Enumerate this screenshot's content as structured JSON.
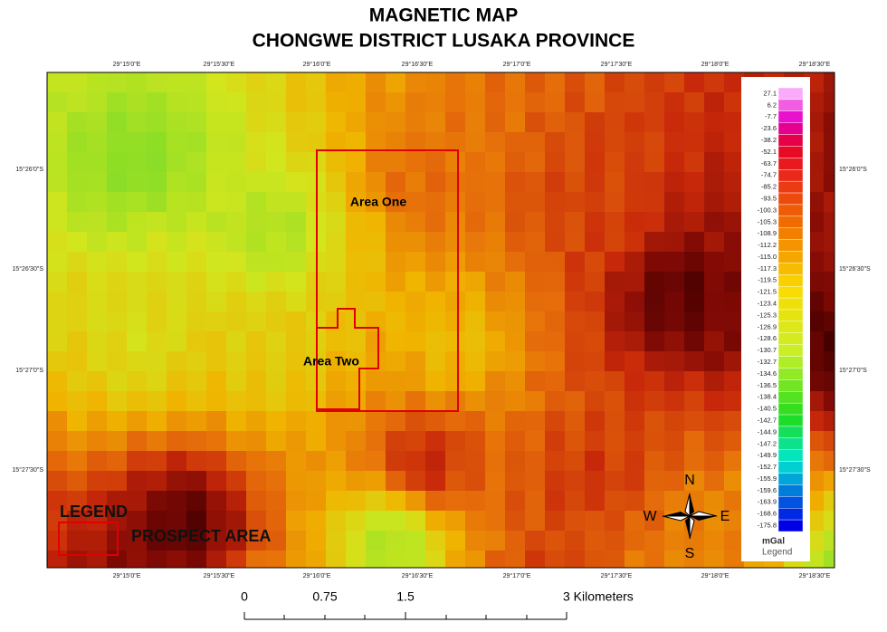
{
  "title": [
    "MAGNETIC MAP",
    "CHONGWE DISTRICT LUSAKA PROVINCE"
  ],
  "longitude_labels": [
    "29°15'0\"E",
    "29°15'30\"E",
    "29°16'0\"E",
    "29°16'30\"E",
    "29°17'0\"E",
    "29°17'30\"E",
    "29°18'0\"E",
    "29°18'30\"E"
  ],
  "latitude_labels": [
    "15°26'0\"S",
    "15°26'30\"S",
    "15°27'0\"S",
    "15°27'30\"S"
  ],
  "areas": [
    "Area One",
    "Area Two"
  ],
  "map_legend": {
    "title": "LEGEND",
    "item": "PROSPECT AREA"
  },
  "compass": {
    "n": "N",
    "w": "W",
    "e": "E",
    "s": "S"
  },
  "color_legend": {
    "values": [
      "27.1",
      "6.2",
      "-7.7",
      "-23.6",
      "-38.2",
      "-52.1",
      "-63.7",
      "-74.7",
      "-85.2",
      "-93.5",
      "-100.3",
      "-105.3",
      "-108.9",
      "-112.2",
      "-115.0",
      "-117.3",
      "-119.5",
      "-121.5",
      "-123.4",
      "-125.3",
      "-126.9",
      "-128.6",
      "-130.7",
      "-132.7",
      "-134.6",
      "-136.5",
      "-138.4",
      "-140.5",
      "-142.7",
      "-144.9",
      "-147.2",
      "-149.9",
      "-152.7",
      "-155.9",
      "-159.6",
      "-163.9",
      "-168.6",
      "-175.8"
    ],
    "unit": "mGal",
    "caption": "Legend"
  },
  "scale_bar": [
    "0",
    "0.75",
    "1.5",
    "3 Kilometers"
  ]
}
